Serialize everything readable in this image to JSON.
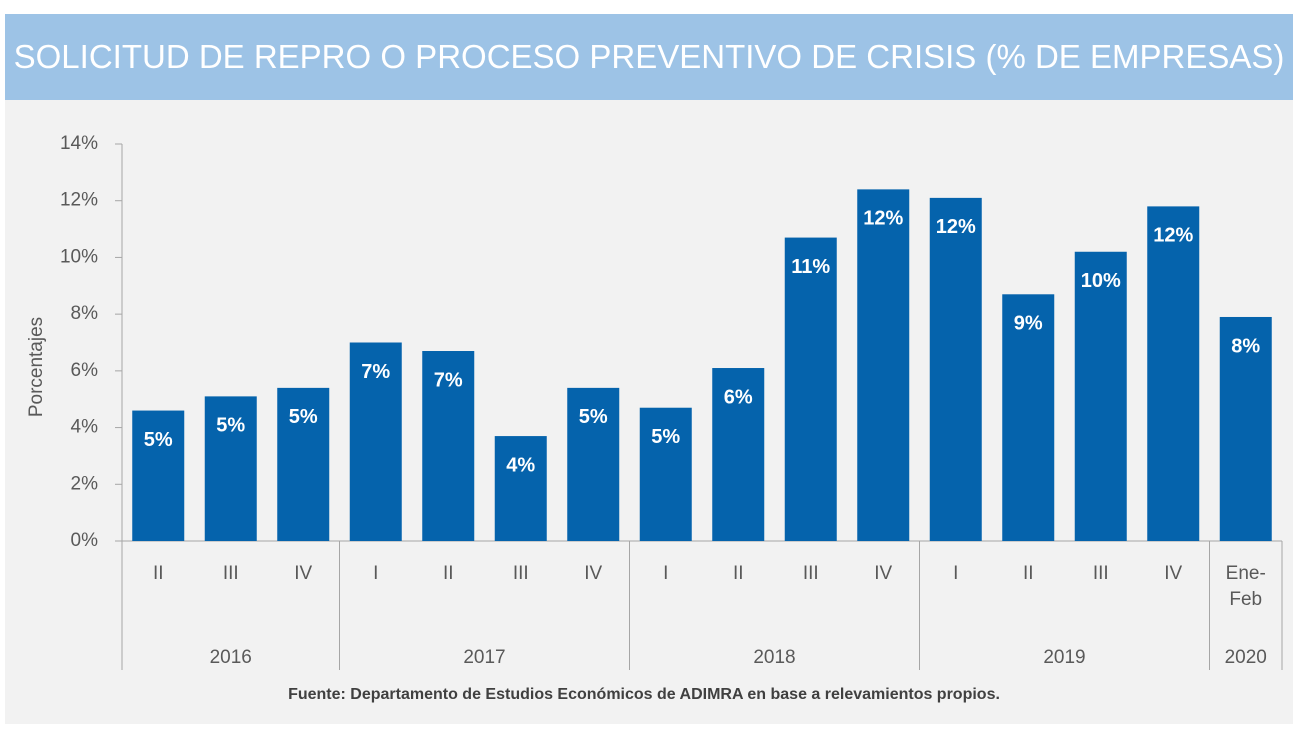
{
  "chart_data": {
    "type": "bar",
    "title": "SOLICITUD DE REPRO O PROCESO PREVENTIVO DE CRISIS (% DE EMPRESAS)",
    "y_label": "Porcentajes",
    "groups": [
      {
        "label": "2016",
        "categories": [
          "II",
          "III",
          "IV"
        ]
      },
      {
        "label": "2017",
        "categories": [
          "I",
          "II",
          "III",
          "IV"
        ]
      },
      {
        "label": "2018",
        "categories": [
          "I",
          "II",
          "III",
          "IV"
        ]
      },
      {
        "label": "2019",
        "categories": [
          "I",
          "II",
          "III",
          "IV"
        ]
      },
      {
        "label": "2020",
        "categories": [
          "Ene-Feb"
        ]
      }
    ],
    "values": [
      4.6,
      5.1,
      5.4,
      7.0,
      6.7,
      3.7,
      5.4,
      4.7,
      6.1,
      10.7,
      12.4,
      12.1,
      8.7,
      10.2,
      11.8,
      7.9
    ],
    "value_labels": [
      "5%",
      "5%",
      "5%",
      "7%",
      "7%",
      "4%",
      "5%",
      "5%",
      "6%",
      "11%",
      "12%",
      "12%",
      "9%",
      "10%",
      "12%",
      "8%"
    ],
    "color": "#0563ac",
    "ylim": [
      0,
      14
    ],
    "yticks": [
      {
        "value": 0,
        "label": "0%"
      },
      {
        "value": 2,
        "label": "2%"
      },
      {
        "value": 4,
        "label": "4%"
      },
      {
        "value": 6,
        "label": "6%"
      },
      {
        "value": 8,
        "label": "8%"
      },
      {
        "value": 10,
        "label": "10%"
      },
      {
        "value": 12,
        "label": "12%"
      },
      {
        "value": 14,
        "label": "14%"
      }
    ],
    "grid": false,
    "source": "Fuente: Departamento de Estudios Económicos de ADIMRA en base a relevamientos propios."
  }
}
